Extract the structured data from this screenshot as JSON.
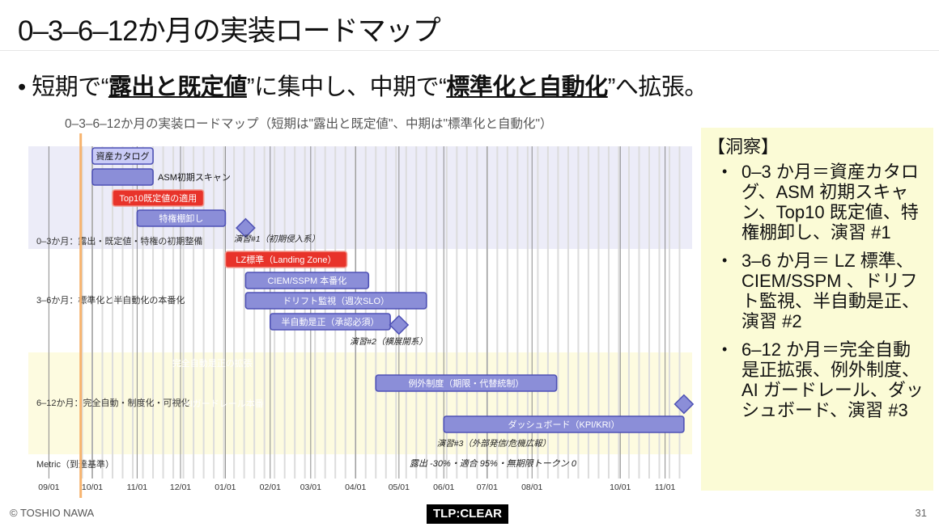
{
  "slide": {
    "title": "0–3–6–12か月の実装ロードマップ",
    "bullet": {
      "pre": "短期で“",
      "em1": "露出と既定値",
      "mid": "”に集中し、中期で“",
      "em2": "標準化と自動化",
      "post": "”へ拡張。"
    },
    "footer_left": "© TOSHIO NAWA",
    "tlp": "TLP:CLEAR",
    "page_number": "31"
  },
  "insight": {
    "heading": "【洞察】",
    "items": [
      "0–3 か月＝資産カタログ、ASM 初期スキャン、Top10 既定値、特権棚卸し、演習 #1",
      "3–6 か月＝ LZ 標準、CIEM/SSPM 、ドリフト監視、半自動是正、演習 #2",
      "6–12 か月＝完全自動是正拡張、例外制度、AI ガードレール、ダッシュボード、演習 #3"
    ]
  },
  "chart_data": {
    "type": "gantt",
    "title": "0–3–6–12か月の実装ロードマップ（短期は\"露出と既定値\"、中期は\"標準化と自動化\"）",
    "x_ticks": [
      "10/01",
      "11/01",
      "12/01",
      "01/01",
      "02/01",
      "03/01",
      "04/01",
      "05/01",
      "06/01",
      "07/01",
      "08/01",
      "09/01",
      "10/01",
      "11/01"
    ],
    "today": "09/23",
    "colors": {
      "task": "#8b8ed8",
      "task_border": "#4e51b5",
      "critical": "#e8332a",
      "critical_border": "#f29a90",
      "done": "#c9cbf7",
      "today_line": "#f7b36e",
      "band_a": "#ececf8",
      "band_b": "#fdfbe0"
    },
    "sections": [
      {
        "name": "0–3か月：露出・既定値・特権の初期整備"
      },
      {
        "name": "3–6か月：標準化と半自動化の本番化"
      },
      {
        "name": "6–12か月：完全自動・制度化・可視化"
      },
      {
        "name": "Metric（到達基準）"
      }
    ],
    "tasks": [
      {
        "section": 0,
        "label": "資産カタログ",
        "start": "10/01",
        "end": "11/12",
        "status": "done"
      },
      {
        "section": 0,
        "label": "ASM初期スキャン",
        "start": "10/01",
        "end": "11/12",
        "status": "task",
        "label_outside": true
      },
      {
        "section": 0,
        "label": "Top10既定値の適用",
        "start": "10/15",
        "end": "12/17",
        "status": "critical"
      },
      {
        "section": 0,
        "label": "特権棚卸し",
        "start": "11/01",
        "end": "01/01",
        "status": "task"
      },
      {
        "section": 0,
        "label": "演習#1（初期侵入系）",
        "start": "01/15",
        "status": "milestone"
      },
      {
        "section": 1,
        "label": "LZ標準（Landing Zone）",
        "start": "01/01",
        "end": "03/26",
        "status": "critical"
      },
      {
        "section": 1,
        "label": "CIEM/SSPM 本番化",
        "start": "01/15",
        "end": "04/10",
        "status": "task"
      },
      {
        "section": 1,
        "label": "ドリフト監視（週次SLO）",
        "start": "01/15",
        "end": "05/20",
        "status": "task"
      },
      {
        "section": 1,
        "label": "半自動是正（承認必須）",
        "start": "02/01",
        "end": "04/25",
        "status": "task"
      },
      {
        "section": 1,
        "label": "演習#2（横展開系）",
        "start": "05/01",
        "status": "milestone"
      },
      {
        "section": 2,
        "label": "完全自動是正の拡張",
        "start": "04/01",
        "end": "09/15",
        "status": "critical"
      },
      {
        "section": 2,
        "label": "例外制度（期限・代替統制）",
        "start": "04/15",
        "end": "08/18",
        "status": "task"
      },
      {
        "section": 2,
        "label": "AIガードレール本番",
        "start": "05/01",
        "end": "09/01",
        "status": "task"
      },
      {
        "section": 2,
        "label": "ダッシュボード（KPI/KRI）",
        "start": "06/01",
        "end": "11/14",
        "status": "task"
      },
      {
        "section": 2,
        "label": "演習#3（外部発信/危機広報）",
        "start": "11/14",
        "status": "milestone"
      },
      {
        "section": 3,
        "label": "露出 -30%・適合 95%・無期限トークン 0",
        "start": "07/05",
        "status": "note"
      }
    ]
  }
}
